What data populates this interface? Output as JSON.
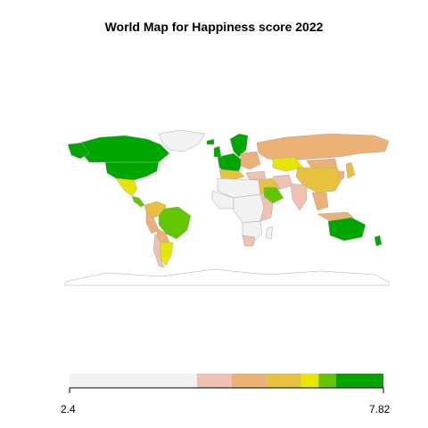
{
  "title": "World Map for Happiness score 2022",
  "legend": {
    "min_label": "2.4",
    "max_label": "7.82",
    "min": 2.4,
    "max": 7.82,
    "bins": [
      {
        "from": 2.4,
        "to": 4.6,
        "color": "#f2f2f2"
      },
      {
        "from": 4.6,
        "to": 5.2,
        "color": "#eec1b0"
      },
      {
        "from": 5.2,
        "to": 5.8,
        "color": "#ebb176"
      },
      {
        "from": 5.8,
        "to": 6.4,
        "color": "#e8c13e"
      },
      {
        "from": 6.4,
        "to": 6.7,
        "color": "#e6e600"
      },
      {
        "from": 6.7,
        "to": 7.0,
        "color": "#63c600"
      },
      {
        "from": 7.0,
        "to": 7.82,
        "color": "#00a600"
      }
    ]
  },
  "colors": {
    "border": "#a9a9a9",
    "no_data": "#ffffff"
  }
}
